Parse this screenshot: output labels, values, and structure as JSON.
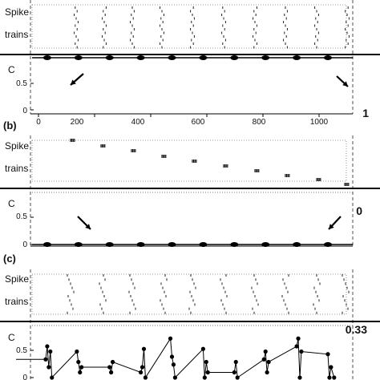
{
  "panels": [
    {
      "panel_label": "",
      "raster_label_top": "Spike",
      "raster_label_bottom": "trains",
      "c_axis_label": "C",
      "c_value_label": "1",
      "c_ticks": [
        "0.5",
        "0"
      ],
      "x_ticks": [
        "0",
        "200",
        "400",
        "600",
        "800",
        "1000"
      ]
    },
    {
      "panel_label": "(b)",
      "raster_label_top": "Spike",
      "raster_label_bottom": "trains",
      "c_axis_label": "C",
      "c_value_label": "0",
      "c_ticks": [
        "0.5",
        "0"
      ]
    },
    {
      "panel_label": "(c)",
      "raster_label_top": "Spike",
      "raster_label_bottom": "trains",
      "c_axis_label": "C",
      "c_value_label": "0.33",
      "c_ticks": [
        "0.5",
        "0"
      ]
    }
  ],
  "chart_data": [
    {
      "type": "line",
      "title": "",
      "xlabel": "",
      "ylabel": "C",
      "xlim": [
        0,
        1100
      ],
      "ylim": [
        0,
        1
      ],
      "x_ticks": [
        0,
        200,
        400,
        600,
        800,
        1000
      ],
      "y_ticks": [
        0.5,
        0
      ],
      "annotation": "1",
      "series": [
        {
          "x": [
            100,
            200,
            300,
            400,
            500,
            600,
            700,
            800,
            900,
            1000
          ],
          "values": [
            1,
            1,
            1,
            1,
            1,
            1,
            1,
            1,
            1,
            1
          ]
        }
      ]
    },
    {
      "type": "line",
      "title": "",
      "xlabel": "",
      "ylabel": "C",
      "xlim": [
        0,
        1100
      ],
      "ylim": [
        0,
        1
      ],
      "y_ticks": [
        0.5,
        0
      ],
      "annotation": "0",
      "series": [
        {
          "x": [
            100,
            200,
            300,
            400,
            500,
            600,
            700,
            800,
            900,
            1000
          ],
          "values": [
            0,
            0,
            0,
            0,
            0,
            0,
            0,
            0,
            0,
            0
          ]
        }
      ]
    },
    {
      "type": "line",
      "title": "",
      "xlabel": "",
      "ylabel": "C",
      "xlim": [
        0,
        1100
      ],
      "ylim": [
        0,
        1
      ],
      "y_ticks": [
        0.5,
        0
      ],
      "annotation": "0.33",
      "series": [
        {
          "x": [
            0,
            95,
            100,
            105,
            110,
            115,
            195,
            200,
            205,
            210,
            300,
            305,
            310,
            400,
            405,
            410,
            415,
            495,
            500,
            505,
            510,
            600,
            605,
            610,
            615,
            700,
            705,
            710,
            795,
            800,
            805,
            810,
            900,
            905,
            910,
            915,
            1000,
            1005,
            1010,
            1020
          ],
          "values": [
            0.35,
            0.35,
            0.6,
            0.2,
            0.5,
            0.0,
            0.5,
            0.3,
            0.1,
            0.2,
            0.2,
            0.1,
            0.3,
            0.1,
            0.2,
            0.55,
            0.0,
            0.75,
            0.4,
            0.25,
            0.0,
            0.55,
            0.0,
            0.3,
            0.1,
            0.1,
            0.3,
            0.0,
            0.35,
            0.5,
            0.1,
            0.3,
            0.6,
            0.75,
            0.0,
            0.5,
            0.45,
            0.0,
            0.2,
            0.0
          ]
        }
      ]
    }
  ]
}
